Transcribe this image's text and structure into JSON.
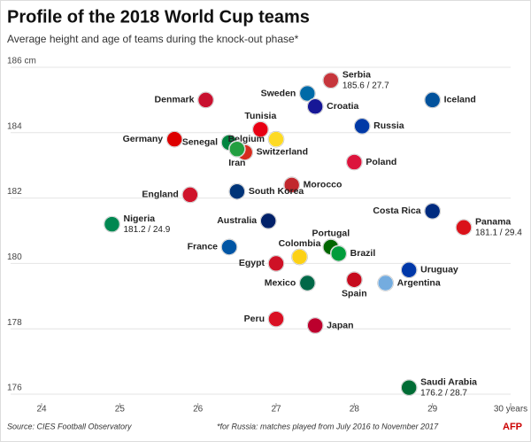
{
  "chart_data": {
    "type": "scatter",
    "title": "Profile of the 2018 World Cup teams",
    "subtitle": "Average height and age of teams during the knock-out phase*",
    "source": "Source: CIES Football Observatory",
    "note": "*for Russia: matches played from July 2016 to November 2017",
    "credit": "AFP",
    "labels": [
      "Serbia",
      "Sweden",
      "Croatia",
      "Denmark",
      "Iceland",
      "Tunisia",
      "Senegal",
      "Germany",
      "Belgium",
      "Russia",
      "Switzerland",
      "Iran",
      "Poland",
      "Morocco",
      "South Korea",
      "England",
      "Australia",
      "Nigeria",
      "Costa Rica",
      "Panama",
      "Portugal",
      "Brazil",
      "Colombia",
      "France",
      "Egypt",
      "Uruguay",
      "Spain",
      "Argentina",
      "Mexico",
      "Peru",
      "Japan",
      "Saudi Arabia"
    ],
    "x": [
      27.7,
      27.4,
      27.5,
      26.1,
      29.0,
      26.8,
      26.4,
      25.7,
      27.0,
      28.1,
      26.6,
      26.5,
      28.0,
      27.2,
      26.5,
      25.9,
      26.9,
      24.9,
      29.0,
      29.4,
      27.7,
      27.8,
      27.3,
      26.4,
      27.0,
      28.7,
      28.0,
      28.4,
      27.4,
      27.0,
      27.5,
      28.7
    ],
    "values": [
      185.6,
      185.2,
      184.8,
      185.0,
      185.0,
      184.1,
      183.7,
      183.8,
      183.8,
      184.2,
      183.4,
      183.5,
      183.1,
      182.4,
      182.2,
      182.1,
      181.3,
      181.2,
      181.6,
      181.1,
      180.5,
      180.3,
      180.2,
      180.5,
      180.0,
      179.8,
      179.5,
      179.4,
      179.4,
      178.3,
      178.1,
      176.2
    ],
    "value_labels": [
      "185.6 / 27.7",
      null,
      null,
      null,
      null,
      null,
      null,
      null,
      null,
      null,
      null,
      null,
      null,
      null,
      null,
      null,
      null,
      "181.2 / 24.9",
      null,
      "181.1 / 29.4",
      null,
      null,
      null,
      null,
      null,
      null,
      null,
      null,
      null,
      null,
      null,
      "176.2 / 28.7"
    ],
    "colors": [
      "#c6363c",
      "#006aa7",
      "#171796",
      "#c8102e",
      "#02529c",
      "#e70013",
      "#00853f",
      "#dd0000",
      "#fdda24",
      "#0039a6",
      "#d52b1e",
      "#239f40",
      "#dc143c",
      "#c1272d",
      "#003478",
      "#cf142b",
      "#012169",
      "#008751",
      "#002b7f",
      "#da121a",
      "#006600",
      "#009c3b",
      "#fcd116",
      "#0055a4",
      "#ce1126",
      "#0038a8",
      "#c60b1e",
      "#74acdf",
      "#006847",
      "#d91023",
      "#bc002d",
      "#006c35"
    ],
    "xlim": [
      24,
      30
    ],
    "ylim": [
      176,
      186
    ],
    "xticks": [
      24,
      25,
      26,
      27,
      28,
      29,
      {
        "value": 30,
        "label": "30 years"
      }
    ],
    "yticks": [
      {
        "value": 186,
        "label": "186 cm"
      },
      184,
      182,
      180,
      178,
      176
    ],
    "grid": true
  }
}
